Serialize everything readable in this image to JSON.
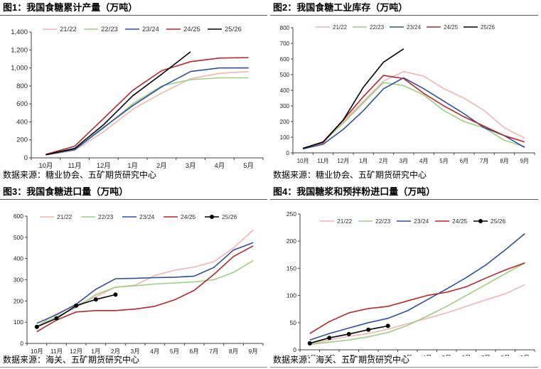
{
  "panels": [
    {
      "title": "图1：我国食糖累计产量（万吨）",
      "source": "数据来源：糖业协会、五矿期货研究中心"
    },
    {
      "title": "图2：我国食糖工业库存（万吨）",
      "source": "数据来源：糖业协会、五矿期货研究中心"
    },
    {
      "title": "图3：我国食糖进口量（万吨）",
      "source": "数据来源：海关、五矿期货研究中心"
    },
    {
      "title": "图4：我国糖浆和预拌粉进口量（万吨）",
      "source": "数据来源：海关、五矿期货研究中心"
    }
  ],
  "chart_data": [
    {
      "type": "line",
      "categories": [
        "10月",
        "11月",
        "12月",
        "1月",
        "2月",
        "3月",
        "4月",
        "5月"
      ],
      "ylim": [
        0,
        1400
      ],
      "yticks": [
        "0",
        "200",
        "400",
        "600",
        "800",
        "1,000",
        "1,200",
        "1,400"
      ],
      "ytick_values": [
        0,
        200,
        400,
        600,
        800,
        1000,
        1200,
        1400
      ],
      "legend": "top",
      "series": [
        {
          "name": "21/22",
          "color": "#f4b4b4",
          "values": [
            30,
            85,
            290,
            540,
            720,
            880,
            940,
            960
          ]
        },
        {
          "name": "22/23",
          "color": "#9ccf82",
          "values": [
            35,
            95,
            330,
            600,
            800,
            870,
            890,
            890
          ]
        },
        {
          "name": "23/24",
          "color": "#2e4f9e",
          "values": [
            35,
            90,
            340,
            580,
            790,
            960,
            1000,
            1000
          ]
        },
        {
          "name": "24/25",
          "color": "#b8262b",
          "values": [
            38,
            130,
            440,
            750,
            970,
            1070,
            1110,
            1115
          ]
        },
        {
          "name": "25/26",
          "color": "#000000",
          "values": [
            35,
            105,
            370,
            690,
            930,
            1180,
            null,
            null
          ]
        }
      ]
    },
    {
      "type": "line",
      "categories": [
        "10月",
        "11月",
        "12月",
        "1月",
        "2月",
        "3月",
        "4月",
        "5月",
        "6月",
        "7月",
        "8月",
        "9月"
      ],
      "ylim": [
        0,
        800
      ],
      "yticks": [
        "0",
        "100",
        "200",
        "300",
        "400",
        "500",
        "600",
        "700",
        "800"
      ],
      "ytick_values": [
        0,
        100,
        200,
        300,
        400,
        500,
        600,
        700,
        800
      ],
      "legend": "top",
      "series": [
        {
          "name": "21/22",
          "color": "#f4b4b4",
          "values": [
            30,
            70,
            200,
            330,
            460,
            520,
            490,
            410,
            350,
            270,
            160,
            95
          ]
        },
        {
          "name": "22/23",
          "color": "#9ccf82",
          "values": [
            30,
            70,
            190,
            320,
            450,
            430,
            370,
            270,
            200,
            160,
            80,
            40
          ]
        },
        {
          "name": "23/24",
          "color": "#2e4f9e",
          "values": [
            25,
            55,
            150,
            270,
            410,
            480,
            410,
            330,
            250,
            160,
            110,
            35
          ]
        },
        {
          "name": "24/25",
          "color": "#b8262b",
          "values": [
            30,
            65,
            210,
            360,
            495,
            475,
            380,
            300,
            230,
            170,
            110,
            70
          ]
        },
        {
          "name": "25/26",
          "color": "#000000",
          "values": [
            28,
            70,
            210,
            420,
            580,
            665,
            null,
            null,
            null,
            null,
            null,
            null
          ]
        }
      ]
    },
    {
      "type": "line",
      "categories": [
        "10月",
        "11月",
        "12月",
        "1月",
        "2月",
        "3月",
        "4月",
        "5月",
        "6月",
        "7月",
        "8月",
        "9月"
      ],
      "ylim": [
        0,
        600
      ],
      "yticks": [
        "0",
        "100",
        "200",
        "300",
        "400",
        "500",
        "600"
      ],
      "ytick_values": [
        0,
        100,
        200,
        300,
        400,
        500,
        600
      ],
      "legend": "top",
      "series": [
        {
          "name": "21/22",
          "color": "#f4b4b4",
          "values": [
            80,
            140,
            180,
            220,
            265,
            275,
            320,
            345,
            360,
            385,
            450,
            535
          ]
        },
        {
          "name": "22/23",
          "color": "#9ccf82",
          "values": [
            80,
            125,
            170,
            230,
            265,
            272,
            280,
            285,
            290,
            300,
            335,
            390
          ]
        },
        {
          "name": "23/24",
          "color": "#2e4f9e",
          "values": [
            95,
            135,
            185,
            255,
            305,
            307,
            310,
            312,
            317,
            358,
            440,
            475
          ]
        },
        {
          "name": "24/25",
          "color": "#b8262b",
          "values": [
            55,
            110,
            148,
            155,
            155,
            162,
            175,
            205,
            250,
            325,
            410,
            460
          ]
        },
        {
          "name": "25/26",
          "color": "#000000",
          "values": [
            78,
            118,
            178,
            207,
            230,
            null,
            null,
            null,
            null,
            null,
            null,
            null
          ],
          "markers": true
        }
      ]
    },
    {
      "type": "line",
      "categories": [
        "10月",
        "11月",
        "12月",
        "1月",
        "2月",
        "3月",
        "4月",
        "5月",
        "6月",
        "7月",
        "8月",
        "9月"
      ],
      "ylim": [
        0,
        250
      ],
      "yticks": [
        "0",
        "50",
        "100",
        "150",
        "200",
        "250"
      ],
      "ytick_values": [
        0,
        50,
        100,
        150,
        200,
        250
      ],
      "legend": "top",
      "series": [
        {
          "name": "21/22",
          "color": "#f4b4b4",
          "values": [
            10,
            18,
            25,
            30,
            38,
            48,
            58,
            68,
            80,
            92,
            103,
            120
          ]
        },
        {
          "name": "22/23",
          "color": "#9ccf82",
          "values": [
            10,
            14,
            18,
            24,
            32,
            45,
            62,
            80,
            100,
            120,
            140,
            160
          ]
        },
        {
          "name": "23/24",
          "color": "#2e4f9e",
          "values": [
            18,
            30,
            40,
            50,
            58,
            72,
            92,
            112,
            133,
            156,
            184,
            214
          ]
        },
        {
          "name": "24/25",
          "color": "#b8262b",
          "values": [
            30,
            52,
            68,
            76,
            80,
            90,
            100,
            106,
            116,
            132,
            147,
            160
          ]
        },
        {
          "name": "25/26",
          "color": "#000000",
          "values": [
            12,
            22,
            29,
            37,
            44,
            null,
            null,
            null,
            null,
            null,
            null,
            null
          ],
          "markers": true
        }
      ]
    }
  ]
}
